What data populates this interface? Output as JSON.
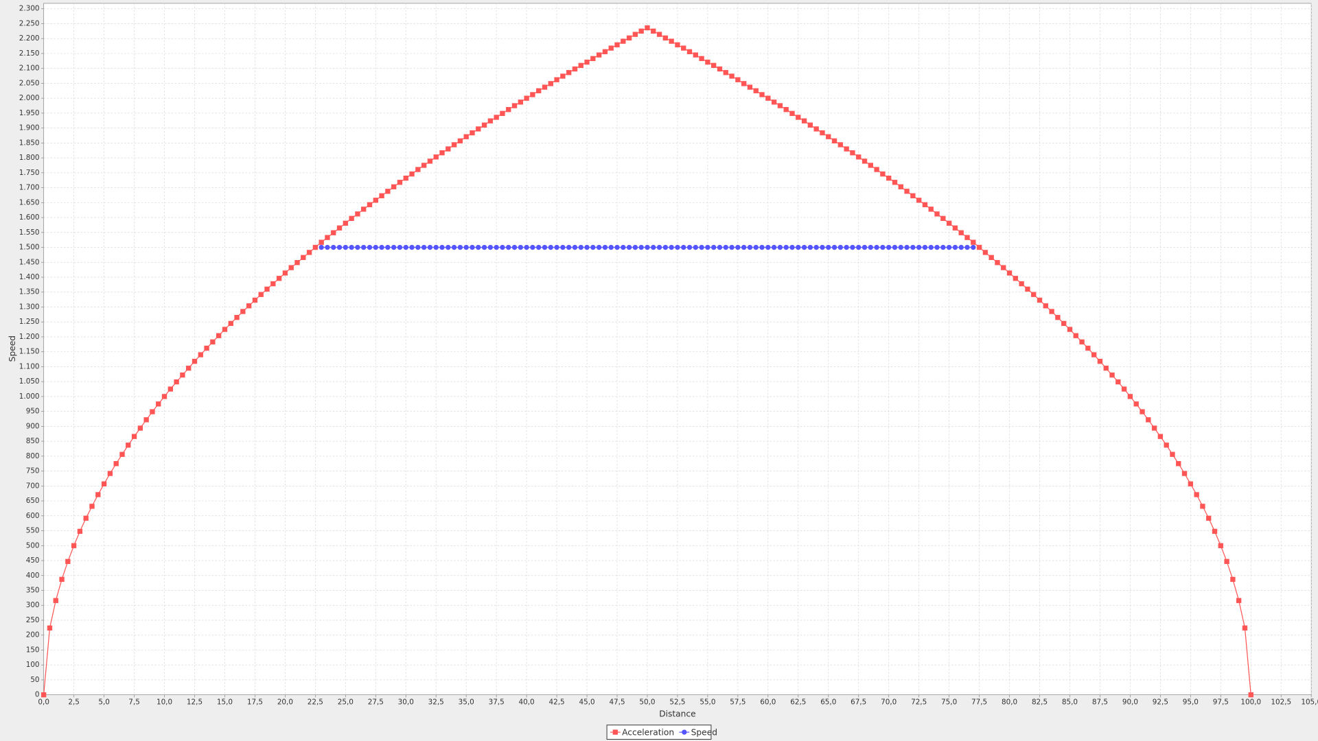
{
  "chart_data": {
    "type": "line",
    "x_label": "Distance",
    "y_label": "Speed",
    "grid": true,
    "legend": "bottom",
    "xlim": [
      0,
      105
    ],
    "ylim": [
      0,
      2318
    ],
    "xticks": [
      {
        "value": 0,
        "label": "0,0"
      },
      {
        "value": 2.5,
        "label": "2,5"
      },
      {
        "value": 5,
        "label": "5,0"
      },
      {
        "value": 7.5,
        "label": "7,5"
      },
      {
        "value": 10,
        "label": "10,0"
      },
      {
        "value": 12.5,
        "label": "12,5"
      },
      {
        "value": 15,
        "label": "15,0"
      },
      {
        "value": 17.5,
        "label": "17,5"
      },
      {
        "value": 20,
        "label": "20,0"
      },
      {
        "value": 22.5,
        "label": "22,5"
      },
      {
        "value": 25,
        "label": "25,0"
      },
      {
        "value": 27.5,
        "label": "27,5"
      },
      {
        "value": 30,
        "label": "30,0"
      },
      {
        "value": 32.5,
        "label": "32,5"
      },
      {
        "value": 35,
        "label": "35,0"
      },
      {
        "value": 37.5,
        "label": "37,5"
      },
      {
        "value": 40,
        "label": "40,0"
      },
      {
        "value": 42.5,
        "label": "42,5"
      },
      {
        "value": 45,
        "label": "45,0"
      },
      {
        "value": 47.5,
        "label": "47,5"
      },
      {
        "value": 50,
        "label": "50,0"
      },
      {
        "value": 52.5,
        "label": "52,5"
      },
      {
        "value": 55,
        "label": "55,0"
      },
      {
        "value": 57.5,
        "label": "57,5"
      },
      {
        "value": 60,
        "label": "60,0"
      },
      {
        "value": 62.5,
        "label": "62,5"
      },
      {
        "value": 65,
        "label": "65,0"
      },
      {
        "value": 67.5,
        "label": "67,5"
      },
      {
        "value": 70,
        "label": "70,0"
      },
      {
        "value": 72.5,
        "label": "72,5"
      },
      {
        "value": 75,
        "label": "75,0"
      },
      {
        "value": 77.5,
        "label": "77,5"
      },
      {
        "value": 80,
        "label": "80,0"
      },
      {
        "value": 82.5,
        "label": "82,5"
      },
      {
        "value": 85,
        "label": "85,0"
      },
      {
        "value": 87.5,
        "label": "87,5"
      },
      {
        "value": 90,
        "label": "90,0"
      },
      {
        "value": 92.5,
        "label": "92,5"
      },
      {
        "value": 95,
        "label": "95,0"
      },
      {
        "value": 97.5,
        "label": "97,5"
      },
      {
        "value": 100,
        "label": "100,0"
      },
      {
        "value": 102.5,
        "label": "102,5"
      },
      {
        "value": 105,
        "label": "105,0"
      }
    ],
    "yticks": [
      0,
      50,
      100,
      150,
      200,
      250,
      300,
      350,
      400,
      450,
      500,
      550,
      600,
      650,
      700,
      750,
      800,
      850,
      900,
      950,
      {
        "value": 1000,
        "label": "1.000"
      },
      {
        "value": 1050,
        "label": "1.050"
      },
      {
        "value": 1100,
        "label": "1.100"
      },
      {
        "value": 1150,
        "label": "1.150"
      },
      {
        "value": 1200,
        "label": "1.200"
      },
      {
        "value": 1250,
        "label": "1.250"
      },
      {
        "value": 1300,
        "label": "1.300"
      },
      {
        "value": 1350,
        "label": "1.350"
      },
      {
        "value": 1400,
        "label": "1.400"
      },
      {
        "value": 1450,
        "label": "1.450"
      },
      {
        "value": 1500,
        "label": "1.500"
      },
      {
        "value": 1550,
        "label": "1.550"
      },
      {
        "value": 1600,
        "label": "1.600"
      },
      {
        "value": 1650,
        "label": "1.650"
      },
      {
        "value": 1700,
        "label": "1.700"
      },
      {
        "value": 1750,
        "label": "1.750"
      },
      {
        "value": 1800,
        "label": "1.800"
      },
      {
        "value": 1850,
        "label": "1.850"
      },
      {
        "value": 1900,
        "label": "1.900"
      },
      {
        "value": 1950,
        "label": "1.950"
      },
      {
        "value": 2000,
        "label": "2.000"
      },
      {
        "value": 2050,
        "label": "2.050"
      },
      {
        "value": 2100,
        "label": "2.100"
      },
      {
        "value": 2150,
        "label": "2.150"
      },
      {
        "value": 2200,
        "label": "2.200"
      },
      {
        "value": 2250,
        "label": "2.250"
      },
      {
        "value": 2300,
        "label": "2.300"
      }
    ],
    "series": [
      {
        "name": "Acceleration",
        "color": "#ff5555",
        "marker": "square",
        "x": [
          0,
          0.5,
          1,
          1.5,
          2,
          2.5,
          3,
          3.5,
          4,
          4.5,
          5,
          5.5,
          6,
          6.5,
          7,
          7.5,
          8,
          8.5,
          9,
          9.5,
          10,
          10.5,
          11,
          11.5,
          12,
          12.5,
          13,
          13.5,
          14,
          14.5,
          15,
          15.5,
          16,
          16.5,
          17,
          17.5,
          18,
          18.5,
          19,
          19.5,
          20,
          20.5,
          21,
          21.5,
          22,
          22.5,
          23,
          23.5,
          24,
          24.5,
          25,
          25.5,
          26,
          26.5,
          27,
          27.5,
          28,
          28.5,
          29,
          29.5,
          30,
          30.5,
          31,
          31.5,
          32,
          32.5,
          33,
          33.5,
          34,
          34.5,
          35,
          35.5,
          36,
          36.5,
          37,
          37.5,
          38,
          38.5,
          39,
          39.5,
          40,
          40.5,
          41,
          41.5,
          42,
          42.5,
          43,
          43.5,
          44,
          44.5,
          45,
          45.5,
          46,
          46.5,
          47,
          47.5,
          48,
          48.5,
          49,
          49.5,
          50,
          50.5,
          51,
          51.5,
          52,
          52.5,
          53,
          53.5,
          54,
          54.5,
          55,
          55.5,
          56,
          56.5,
          57,
          57.5,
          58,
          58.5,
          59,
          59.5,
          60,
          60.5,
          61,
          61.5,
          62,
          62.5,
          63,
          63.5,
          64,
          64.5,
          65,
          65.5,
          66,
          66.5,
          67,
          67.5,
          68,
          68.5,
          69,
          69.5,
          70,
          70.5,
          71,
          71.5,
          72,
          72.5,
          73,
          73.5,
          74,
          74.5,
          75,
          75.5,
          76,
          76.5,
          77,
          77.5,
          78,
          78.5,
          79,
          79.5,
          80,
          80.5,
          81,
          81.5,
          82,
          82.5,
          83,
          83.5,
          84,
          84.5,
          85,
          85.5,
          86,
          86.5,
          87,
          87.5,
          88,
          88.5,
          89,
          89.5,
          90,
          90.5,
          91,
          91.5,
          92,
          92.5,
          93,
          93.5,
          94,
          94.5,
          95,
          95.5,
          96,
          96.5,
          97,
          97.5,
          98,
          98.5,
          99,
          99.5,
          100
        ],
        "values": [
          0,
          224,
          316,
          387,
          447,
          500,
          548,
          592,
          632,
          671,
          707,
          742,
          775,
          806,
          837,
          866,
          894,
          922,
          949,
          975,
          1000,
          1025,
          1049,
          1072,
          1095,
          1118,
          1140,
          1162,
          1183,
          1204,
          1225,
          1245,
          1265,
          1285,
          1304,
          1323,
          1342,
          1360,
          1378,
          1396,
          1414,
          1432,
          1449,
          1466,
          1483,
          1500,
          1517,
          1533,
          1549,
          1565,
          1581,
          1597,
          1612,
          1628,
          1643,
          1658,
          1673,
          1688,
          1703,
          1718,
          1732,
          1746,
          1761,
          1775,
          1789,
          1803,
          1817,
          1830,
          1844,
          1857,
          1871,
          1884,
          1897,
          1910,
          1924,
          1936,
          1949,
          1962,
          1975,
          1987,
          2000,
          2012,
          2025,
          2037,
          2049,
          2062,
          2074,
          2086,
          2098,
          2110,
          2121,
          2133,
          2145,
          2156,
          2168,
          2179,
          2191,
          2202,
          2214,
          2225,
          2236,
          2225,
          2214,
          2202,
          2191,
          2179,
          2168,
          2156,
          2145,
          2133,
          2121,
          2110,
          2098,
          2086,
          2074,
          2062,
          2049,
          2037,
          2025,
          2012,
          2000,
          1987,
          1975,
          1962,
          1949,
          1936,
          1924,
          1910,
          1897,
          1884,
          1871,
          1857,
          1844,
          1830,
          1817,
          1803,
          1789,
          1775,
          1761,
          1746,
          1732,
          1718,
          1703,
          1688,
          1673,
          1658,
          1643,
          1628,
          1612,
          1597,
          1581,
          1565,
          1549,
          1533,
          1517,
          1500,
          1483,
          1466,
          1449,
          1432,
          1414,
          1396,
          1378,
          1360,
          1342,
          1323,
          1304,
          1285,
          1265,
          1245,
          1225,
          1204,
          1183,
          1162,
          1140,
          1118,
          1095,
          1072,
          1049,
          1025,
          1000,
          975,
          949,
          922,
          894,
          866,
          837,
          806,
          775,
          742,
          707,
          671,
          632,
          592,
          548,
          500,
          447,
          387,
          316,
          224,
          0
        ]
      },
      {
        "name": "Speed",
        "color": "#5555ff",
        "marker": "circle",
        "x": [
          23,
          23.5,
          24,
          24.5,
          25,
          25.5,
          26,
          26.5,
          27,
          27.5,
          28,
          28.5,
          29,
          29.5,
          30,
          30.5,
          31,
          31.5,
          32,
          32.5,
          33,
          33.5,
          34,
          34.5,
          35,
          35.5,
          36,
          36.5,
          37,
          37.5,
          38,
          38.5,
          39,
          39.5,
          40,
          40.5,
          41,
          41.5,
          42,
          42.5,
          43,
          43.5,
          44,
          44.5,
          45,
          45.5,
          46,
          46.5,
          47,
          47.5,
          48,
          48.5,
          49,
          49.5,
          50,
          50.5,
          51,
          51.5,
          52,
          52.5,
          53,
          53.5,
          54,
          54.5,
          55,
          55.5,
          56,
          56.5,
          57,
          57.5,
          58,
          58.5,
          59,
          59.5,
          60,
          60.5,
          61,
          61.5,
          62,
          62.5,
          63,
          63.5,
          64,
          64.5,
          65,
          65.5,
          66,
          66.5,
          67,
          67.5,
          68,
          68.5,
          69,
          69.5,
          70,
          70.5,
          71,
          71.5,
          72,
          72.5,
          73,
          73.5,
          74,
          74.5,
          75,
          75.5,
          76,
          76.5,
          77
        ],
        "values": [
          1500,
          1500,
          1500,
          1500,
          1500,
          1500,
          1500,
          1500,
          1500,
          1500,
          1500,
          1500,
          1500,
          1500,
          1500,
          1500,
          1500,
          1500,
          1500,
          1500,
          1500,
          1500,
          1500,
          1500,
          1500,
          1500,
          1500,
          1500,
          1500,
          1500,
          1500,
          1500,
          1500,
          1500,
          1500,
          1500,
          1500,
          1500,
          1500,
          1500,
          1500,
          1500,
          1500,
          1500,
          1500,
          1500,
          1500,
          1500,
          1500,
          1500,
          1500,
          1500,
          1500,
          1500,
          1500,
          1500,
          1500,
          1500,
          1500,
          1500,
          1500,
          1500,
          1500,
          1500,
          1500,
          1500,
          1500,
          1500,
          1500,
          1500,
          1500,
          1500,
          1500,
          1500,
          1500,
          1500,
          1500,
          1500,
          1500,
          1500,
          1500,
          1500,
          1500,
          1500,
          1500,
          1500,
          1500,
          1500,
          1500,
          1500,
          1500,
          1500,
          1500,
          1500,
          1500,
          1500,
          1500,
          1500,
          1500,
          1500,
          1500,
          1500,
          1500,
          1500,
          1500,
          1500,
          1500,
          1500,
          1500
        ]
      }
    ]
  }
}
